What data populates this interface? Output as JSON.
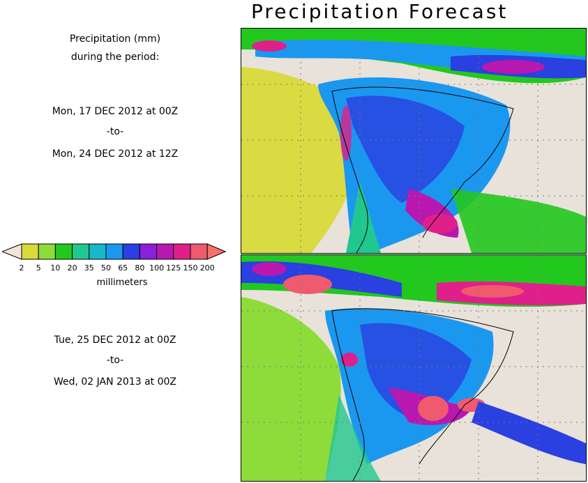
{
  "title": "Precipitation Forecast",
  "subtitle_line1": "Precipitation (mm)",
  "subtitle_line2": "during the period:",
  "period1": {
    "start": "Mon, 17 DEC 2012 at 00Z",
    "sep": "-to-",
    "end": "Mon, 24 DEC 2012 at 12Z"
  },
  "period2": {
    "start": "Tue, 25 DEC 2012 at 00Z",
    "sep": "-to-",
    "end": "Wed, 02 JAN 2013 at 00Z"
  },
  "legend": {
    "unit": "millimeters",
    "ticks": [
      "2",
      "5",
      "10",
      "20",
      "35",
      "50",
      "65",
      "80",
      "100",
      "125",
      "150",
      "200"
    ],
    "colors": [
      "#f0e6dc",
      "#d9d93a",
      "#8edc3a",
      "#22c81e",
      "#20c890",
      "#18b8c8",
      "#1a98f0",
      "#2a40e0",
      "#8a20d8",
      "#b818b0",
      "#e0208a",
      "#f05a6e",
      "#f8706a"
    ]
  }
}
